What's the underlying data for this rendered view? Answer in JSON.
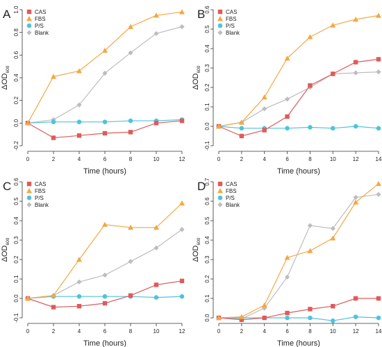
{
  "chart_data": [
    {
      "type": "line",
      "panel": "A",
      "xlabel": "Time (hours)",
      "ylabel": "ΔOD",
      "ylabel_subscript": "600",
      "xlim": [
        0,
        12
      ],
      "ylim": [
        -0.2,
        1.0
      ],
      "xticks": [
        0,
        2,
        4,
        6,
        8,
        10,
        12
      ],
      "yticks": [
        -0.2,
        0.0,
        0.2,
        0.4,
        0.6,
        0.8,
        1.0
      ],
      "ytick_labels": [
        "-0.2",
        "0.0",
        "0.2",
        "0.4",
        "0.6",
        "0.8",
        "1.0"
      ],
      "legend": "top-left",
      "grid": false,
      "x": [
        0,
        2,
        4,
        6,
        8,
        10,
        12
      ],
      "series": [
        {
          "name": "CAS",
          "color": "#e05a5a",
          "marker": "square",
          "values": [
            0.0,
            -0.13,
            -0.11,
            -0.09,
            -0.08,
            0.0,
            0.02
          ]
        },
        {
          "name": "FBS",
          "color": "#f5a742",
          "marker": "triangle",
          "values": [
            0.0,
            0.41,
            0.46,
            0.64,
            0.85,
            0.95,
            0.98
          ]
        },
        {
          "name": "P/S",
          "color": "#4fc3dc",
          "marker": "circle",
          "values": [
            0.0,
            0.01,
            0.01,
            0.01,
            0.02,
            0.02,
            0.03
          ]
        },
        {
          "name": "Blank",
          "color": "#bdbdbd",
          "marker": "diamond",
          "values": [
            0.0,
            0.03,
            0.16,
            0.44,
            0.62,
            0.79,
            0.85
          ]
        }
      ]
    },
    {
      "type": "line",
      "panel": "B",
      "xlabel": "Time (hours)",
      "ylabel": "ΔOD",
      "ylabel_subscript": "600",
      "xlim": [
        0,
        14
      ],
      "ylim": [
        -0.1,
        0.6
      ],
      "xticks": [
        0,
        2,
        4,
        6,
        8,
        10,
        12,
        14
      ],
      "yticks": [
        -0.1,
        0.0,
        0.1,
        0.2,
        0.3,
        0.4,
        0.5,
        0.6
      ],
      "ytick_labels": [
        "-0.1",
        "0.0",
        "0.1",
        "0.2",
        "0.3",
        "0.4",
        "0.5",
        "0.6"
      ],
      "legend": "top-left",
      "grid": false,
      "x": [
        0,
        2,
        4,
        6,
        8,
        10,
        12,
        14
      ],
      "series": [
        {
          "name": "CAS",
          "color": "#e05a5a",
          "marker": "square",
          "values": [
            0.0,
            -0.05,
            -0.02,
            0.05,
            0.21,
            0.27,
            0.33,
            0.345
          ]
        },
        {
          "name": "FBS",
          "color": "#f5a742",
          "marker": "triangle",
          "values": [
            0.0,
            0.02,
            0.15,
            0.35,
            0.46,
            0.52,
            0.55,
            0.57
          ]
        },
        {
          "name": "P/S",
          "color": "#4fc3dc",
          "marker": "circle",
          "values": [
            0.0,
            -0.01,
            -0.01,
            -0.01,
            -0.005,
            -0.01,
            0.0,
            -0.01
          ]
        },
        {
          "name": "Blank",
          "color": "#bdbdbd",
          "marker": "diamond",
          "values": [
            0.0,
            0.02,
            0.09,
            0.14,
            0.2,
            0.27,
            0.275,
            0.28
          ]
        }
      ]
    },
    {
      "type": "line",
      "panel": "C",
      "xlabel": "Time (hours)",
      "ylabel": "ΔOD",
      "ylabel_subscript": "600",
      "xlim": [
        0,
        12
      ],
      "ylim": [
        -0.1,
        0.6
      ],
      "xticks": [
        0,
        2,
        4,
        6,
        8,
        10,
        12
      ],
      "yticks": [
        -0.1,
        0.0,
        0.1,
        0.2,
        0.3,
        0.4,
        0.5,
        0.6
      ],
      "ytick_labels": [
        "-0.1",
        "0.0",
        "0.1",
        "0.2",
        "0.3",
        "0.4",
        "0.5",
        "0.6"
      ],
      "legend": "top-left",
      "grid": false,
      "x": [
        0,
        2,
        4,
        6,
        8,
        10,
        12
      ],
      "series": [
        {
          "name": "CAS",
          "color": "#e05a5a",
          "marker": "square",
          "values": [
            0.0,
            -0.045,
            -0.04,
            -0.025,
            0.015,
            0.07,
            0.09
          ]
        },
        {
          "name": "FBS",
          "color": "#f5a742",
          "marker": "triangle",
          "values": [
            0.0,
            0.015,
            0.2,
            0.38,
            0.365,
            0.365,
            0.49
          ]
        },
        {
          "name": "P/S",
          "color": "#4fc3dc",
          "marker": "circle",
          "values": [
            0.0,
            0.01,
            0.01,
            0.01,
            0.01,
            0.005,
            0.01
          ]
        },
        {
          "name": "Blank",
          "color": "#bdbdbd",
          "marker": "diamond",
          "values": [
            0.0,
            0.015,
            0.085,
            0.12,
            0.19,
            0.26,
            0.355
          ]
        }
      ]
    },
    {
      "type": "line",
      "panel": "D",
      "xlabel": "Time (hours)",
      "ylabel": "ΔOD",
      "ylabel_subscript": "600",
      "xlim": [
        0,
        14
      ],
      "ylim": [
        0.0,
        0.7
      ],
      "xticks": [
        0,
        2,
        4,
        6,
        8,
        10,
        12,
        14
      ],
      "yticks": [
        0.0,
        0.1,
        0.2,
        0.3,
        0.4,
        0.5,
        0.6,
        0.7
      ],
      "ytick_labels": [
        "0.0",
        "0.1",
        "0.2",
        "0.3",
        "0.4",
        "0.5",
        "0.6",
        "0.7"
      ],
      "legend": "top-left",
      "grid": false,
      "x": [
        0,
        2,
        4,
        6,
        8,
        10,
        12,
        14
      ],
      "series": [
        {
          "name": "CAS",
          "color": "#e05a5a",
          "marker": "square",
          "values": [
            0.0,
            -0.01,
            0.0,
            0.025,
            0.045,
            0.06,
            0.1,
            0.1
          ]
        },
        {
          "name": "FBS",
          "color": "#f5a742",
          "marker": "triangle",
          "values": [
            0.0,
            0.005,
            0.065,
            0.31,
            0.345,
            0.41,
            0.595,
            0.69
          ]
        },
        {
          "name": "P/S",
          "color": "#4fc3dc",
          "marker": "circle",
          "values": [
            0.0,
            0.0,
            0.0,
            0.0,
            0.0,
            -0.015,
            0.005,
            0.0
          ]
        },
        {
          "name": "Blank",
          "color": "#bdbdbd",
          "marker": "diamond",
          "values": [
            0.0,
            -0.005,
            0.05,
            0.21,
            0.475,
            0.46,
            0.62,
            0.635
          ]
        }
      ]
    }
  ]
}
